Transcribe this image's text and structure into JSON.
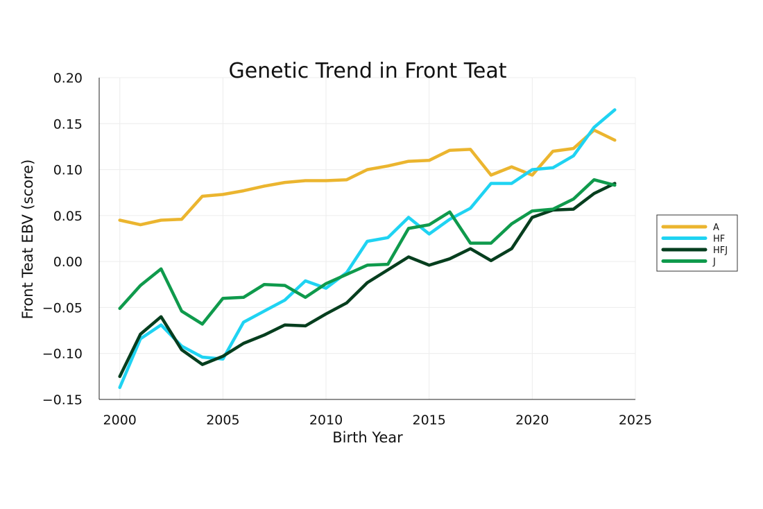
{
  "chart_data": {
    "type": "line",
    "title": "Genetic Trend in Front Teat",
    "xlabel": "Birth Year",
    "ylabel": "Front Teat EBV (score)",
    "xlim": [
      1999,
      2025
    ],
    "ylim": [
      -0.15,
      0.2
    ],
    "xticks": [
      2000,
      2005,
      2010,
      2015,
      2020,
      2025
    ],
    "yticks": [
      0.2,
      0.15,
      0.1,
      0.05,
      0.0,
      -0.05,
      -0.1,
      -0.15
    ],
    "ytick_labels": [
      "0.20",
      "0.15",
      "0.10",
      "0.05",
      "0.00",
      "−0.05",
      "−0.10",
      "−0.15"
    ],
    "grid": true,
    "legend_position": "right",
    "x": [
      2000,
      2001,
      2002,
      2003,
      2004,
      2005,
      2006,
      2007,
      2008,
      2009,
      2010,
      2011,
      2012,
      2013,
      2014,
      2015,
      2016,
      2017,
      2018,
      2019,
      2020,
      2021,
      2022,
      2023,
      2024
    ],
    "series": [
      {
        "name": "A",
        "color": "#ebb52f",
        "values": [
          0.045,
          0.04,
          0.045,
          0.046,
          0.071,
          0.073,
          0.077,
          0.082,
          0.086,
          0.088,
          0.088,
          0.089,
          0.1,
          0.104,
          0.109,
          0.11,
          0.121,
          0.122,
          0.094,
          0.103,
          0.094,
          0.12,
          0.123,
          0.143,
          0.132
        ]
      },
      {
        "name": "HF",
        "color": "#1fd3f2",
        "values": [
          -0.137,
          -0.084,
          -0.069,
          -0.092,
          -0.104,
          -0.106,
          -0.066,
          -0.054,
          -0.042,
          -0.021,
          -0.029,
          -0.012,
          0.022,
          0.026,
          0.048,
          0.03,
          0.046,
          0.058,
          0.085,
          0.085,
          0.1,
          0.102,
          0.115,
          0.146,
          0.165
        ]
      },
      {
        "name": "HFJ",
        "color": "#063e1e",
        "values": [
          -0.125,
          -0.079,
          -0.06,
          -0.096,
          -0.112,
          -0.103,
          -0.089,
          -0.08,
          -0.069,
          -0.07,
          -0.057,
          -0.045,
          -0.023,
          -0.009,
          0.005,
          -0.004,
          0.003,
          0.014,
          0.001,
          0.014,
          0.048,
          0.056,
          0.057,
          0.074,
          0.085
        ]
      },
      {
        "name": "J",
        "color": "#0f9a4c",
        "values": [
          -0.051,
          -0.026,
          -0.008,
          -0.054,
          -0.068,
          -0.04,
          -0.039,
          -0.025,
          -0.026,
          -0.039,
          -0.024,
          -0.014,
          -0.004,
          -0.003,
          0.036,
          0.04,
          0.054,
          0.02,
          0.02,
          0.041,
          0.055,
          0.057,
          0.068,
          0.089,
          0.083
        ]
      }
    ]
  }
}
